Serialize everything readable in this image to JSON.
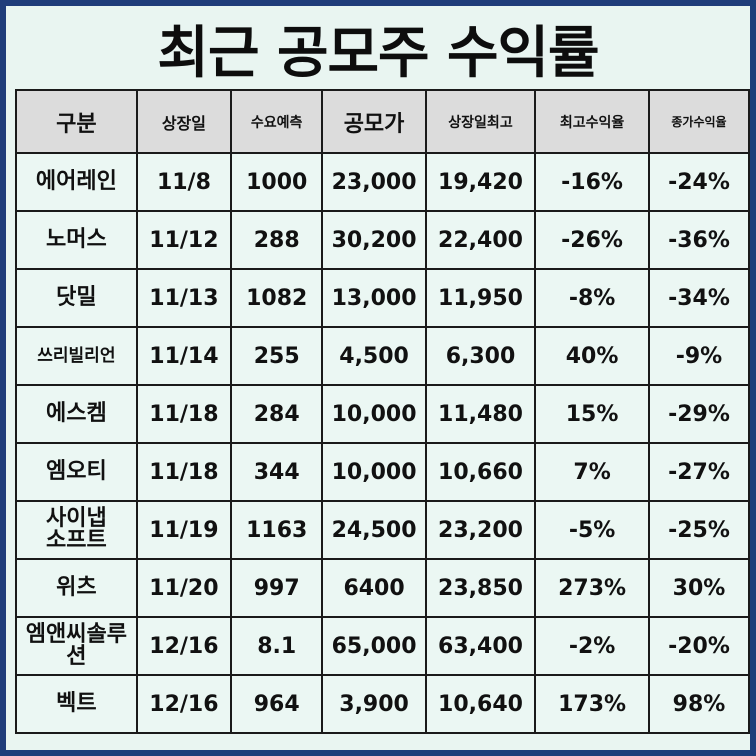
{
  "title": "최근 공모주 수익률",
  "headers": [
    "구분",
    "상장일",
    "수요예측",
    "공모가",
    "상장일최고",
    "최고수익율",
    "종가수익율"
  ],
  "rows": [
    {
      "name": "에어레인",
      "date": "11/8",
      "demand": "1000",
      "price": "23,000",
      "high": "19,420",
      "max_return": "-16%",
      "close_return": "-24%"
    },
    {
      "name": "노머스",
      "date": "11/12",
      "demand": "288",
      "price": "30,200",
      "high": "22,400",
      "max_return": "-26%",
      "close_return": "-36%"
    },
    {
      "name": "닷밀",
      "date": "11/13",
      "demand": "1082",
      "price": "13,000",
      "high": "11,950",
      "max_return": "-8%",
      "close_return": "-34%"
    },
    {
      "name": "쓰리빌리언",
      "date": "11/14",
      "demand": "255",
      "price": "4,500",
      "high": "6,300",
      "max_return": "40%",
      "close_return": "-9%"
    },
    {
      "name": "에스켐",
      "date": "11/18",
      "demand": "284",
      "price": "10,000",
      "high": "11,480",
      "max_return": "15%",
      "close_return": "-29%"
    },
    {
      "name": "엠오티",
      "date": "11/18",
      "demand": "344",
      "price": "10,000",
      "high": "10,660",
      "max_return": "7%",
      "close_return": "-27%"
    },
    {
      "name": "사이냅소프트",
      "date": "11/19",
      "demand": "1163",
      "price": "24,500",
      "high": "23,200",
      "max_return": "-5%",
      "close_return": "-25%"
    },
    {
      "name": "위츠",
      "date": "11/20",
      "demand": "997",
      "price": "6400",
      "high": "23,850",
      "max_return": "273%",
      "close_return": "30%"
    },
    {
      "name": "엠앤씨솔루션",
      "date": "12/16",
      "demand": "8.1",
      "price": "65,000",
      "high": "63,400",
      "max_return": "-2%",
      "close_return": "-20%"
    },
    {
      "name": "벡트",
      "date": "12/16",
      "demand": "964",
      "price": "3,900",
      "high": "10,640",
      "max_return": "173%",
      "close_return": "98%"
    }
  ]
}
